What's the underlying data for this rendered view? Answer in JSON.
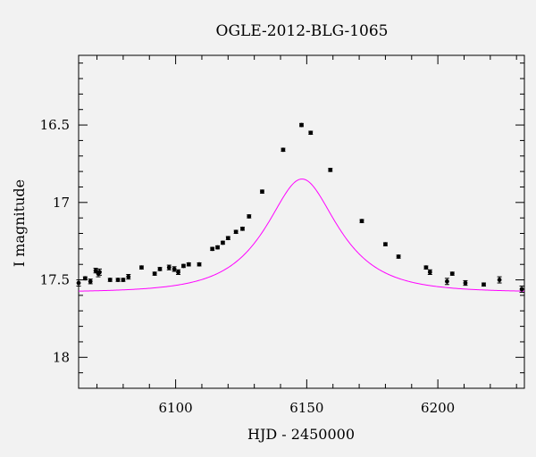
{
  "chart_data": {
    "type": "scatter",
    "title": "OGLE-2012-BLG-1065",
    "xlabel": "HJD - 2450000",
    "ylabel": "I magnitude",
    "xlim": [
      6063,
      6233
    ],
    "ylim": [
      18.2,
      16.05
    ],
    "y_inverted": true,
    "x_major_ticks": [
      6100,
      6150,
      6200
    ],
    "y_major_ticks": [
      16.5,
      17,
      17.5,
      18
    ],
    "x_tick_labels": [
      "6100",
      "6150",
      "6200"
    ],
    "y_tick_labels": [
      "16.5",
      "17",
      "17.5",
      "18"
    ],
    "grid": false,
    "series": [
      {
        "type": "errorbar",
        "color": "#000000",
        "x": [
          6063.0,
          6065.5,
          6067.5,
          6069.5,
          6070.5,
          6071.0,
          6075.0,
          6078.0,
          6080.0,
          6082.0,
          6087.0,
          6092.0,
          6094.0,
          6097.5,
          6099.5,
          6101.0,
          6103.0,
          6105.0,
          6109.0,
          6114.0,
          6116.0,
          6118.0,
          6120.0,
          6123.0,
          6125.5,
          6128.0,
          6133.0,
          6141.0,
          6148.0,
          6151.5,
          6159.0,
          6171.0,
          6180.0,
          6185.0,
          6195.5,
          6197.0,
          6203.5,
          6205.5,
          6210.5,
          6217.5,
          6223.5,
          6232.0
        ],
        "y": [
          17.52,
          17.49,
          17.51,
          17.44,
          17.46,
          17.45,
          17.5,
          17.5,
          17.5,
          17.48,
          17.42,
          17.46,
          17.43,
          17.42,
          17.43,
          17.45,
          17.41,
          17.4,
          17.4,
          17.3,
          17.29,
          17.26,
          17.23,
          17.19,
          17.17,
          17.09,
          16.93,
          16.66,
          16.5,
          16.55,
          16.79,
          17.12,
          17.27,
          17.35,
          17.42,
          17.45,
          17.51,
          17.46,
          17.52,
          17.53,
          17.5,
          17.56
        ],
        "yerr": [
          0.02,
          0.01,
          0.015,
          0.015,
          0.02,
          0.02,
          0.01,
          0.01,
          0.01,
          0.015,
          0.01,
          0.01,
          0.01,
          0.015,
          0.015,
          0.015,
          0.01,
          0.01,
          0.01,
          0.01,
          0.01,
          0.01,
          0.01,
          0.01,
          0.01,
          0.01,
          0.01,
          0.01,
          0.01,
          0.01,
          0.01,
          0.01,
          0.01,
          0.01,
          0.01,
          0.015,
          0.02,
          0.01,
          0.015,
          0.01,
          0.02,
          0.02
        ]
      },
      {
        "type": "line",
        "color": "#ff00ff",
        "model": "point-lens",
        "t0": 6148.2,
        "tE": 22,
        "u0": 0.57,
        "baseline_mag": 17.58
      }
    ]
  }
}
